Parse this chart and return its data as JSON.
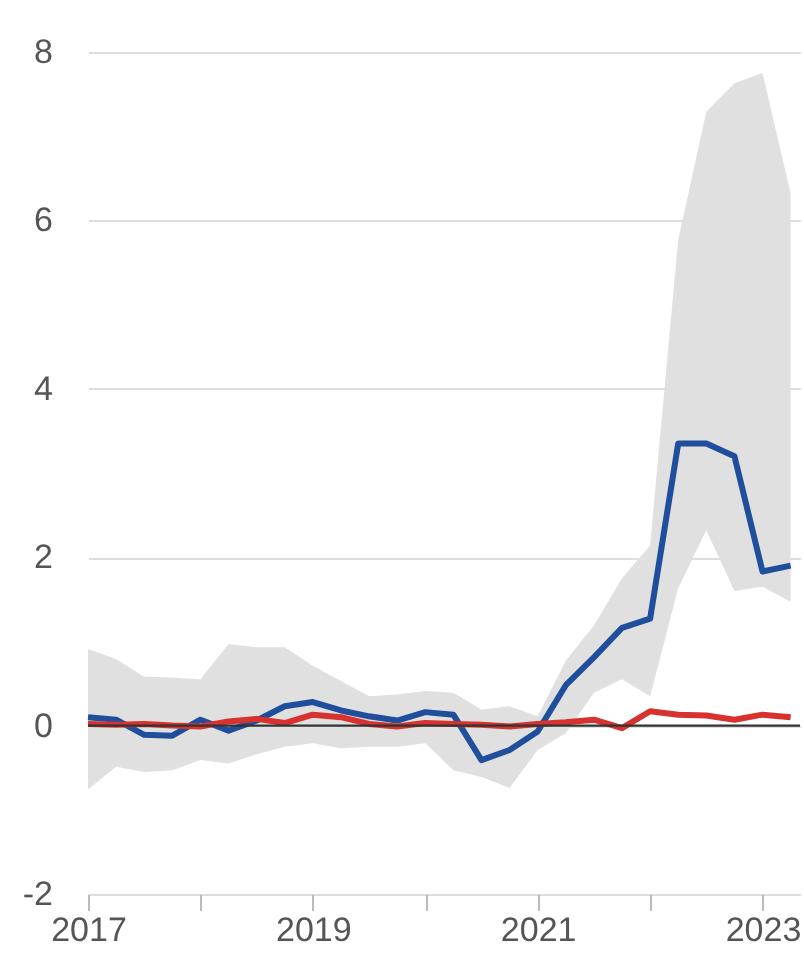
{
  "chart_data": {
    "type": "line",
    "x": [
      "2017-01",
      "2017-04",
      "2017-07",
      "2017-10",
      "2018-01",
      "2018-04",
      "2018-07",
      "2018-10",
      "2019-01",
      "2019-04",
      "2019-07",
      "2019-10",
      "2020-01",
      "2020-04",
      "2020-07",
      "2020-10",
      "2021-01",
      "2021-04",
      "2021-07",
      "2021-10",
      "2022-01",
      "2022-04",
      "2022-07",
      "2022-10",
      "2023-01",
      "2023-04"
    ],
    "series": [
      {
        "color": "#1f4e9c",
        "values": [
          0.1,
          0.07,
          -0.11,
          -0.12,
          0.07,
          -0.06,
          0.06,
          0.23,
          0.28,
          0.18,
          0.11,
          0.06,
          0.16,
          0.13,
          -0.41,
          -0.29,
          -0.07,
          0.48,
          0.81,
          1.16,
          1.27,
          3.35,
          3.35,
          3.2,
          1.83,
          1.9
        ],
        "lower": [
          -0.76,
          -0.49,
          -0.55,
          -0.53,
          -0.41,
          -0.45,
          -0.34,
          -0.25,
          -0.21,
          -0.27,
          -0.25,
          -0.25,
          -0.21,
          -0.53,
          -0.61,
          -0.74,
          -0.29,
          -0.09,
          0.39,
          0.55,
          0.35,
          1.63,
          2.32,
          1.6,
          1.65,
          1.47
        ],
        "upper": [
          0.91,
          0.79,
          0.58,
          0.57,
          0.55,
          0.97,
          0.93,
          0.93,
          0.71,
          0.53,
          0.35,
          0.37,
          0.41,
          0.39,
          0.19,
          0.23,
          0.11,
          0.77,
          1.19,
          1.75,
          2.14,
          5.77,
          7.29,
          7.63,
          7.75,
          6.32
        ]
      },
      {
        "color": "#d7322e",
        "values": [
          0.02,
          0.01,
          0.02,
          0.0,
          -0.01,
          0.05,
          0.08,
          0.03,
          0.13,
          0.1,
          0.02,
          -0.01,
          0.03,
          0.02,
          0.01,
          -0.01,
          0.02,
          0.04,
          0.07,
          -0.03,
          0.17,
          0.13,
          0.12,
          0.07,
          0.13,
          0.1
        ]
      }
    ],
    "xlim": [
      "2017-01",
      "2023-05"
    ],
    "xticks": [
      "2017",
      {
        "value": "2018",
        "label": null
      },
      "2019",
      {
        "value": "2020",
        "label": null
      },
      "2021",
      {
        "value": "2022",
        "label": null
      },
      "2023"
    ],
    "ylim": [
      -2,
      8
    ],
    "yticks": [
      -2,
      0,
      2,
      4,
      6,
      8
    ],
    "grid": "y",
    "legend": false,
    "ref_lines": [
      {
        "axis": "y",
        "value": 0,
        "color": "#333333"
      }
    ]
  }
}
